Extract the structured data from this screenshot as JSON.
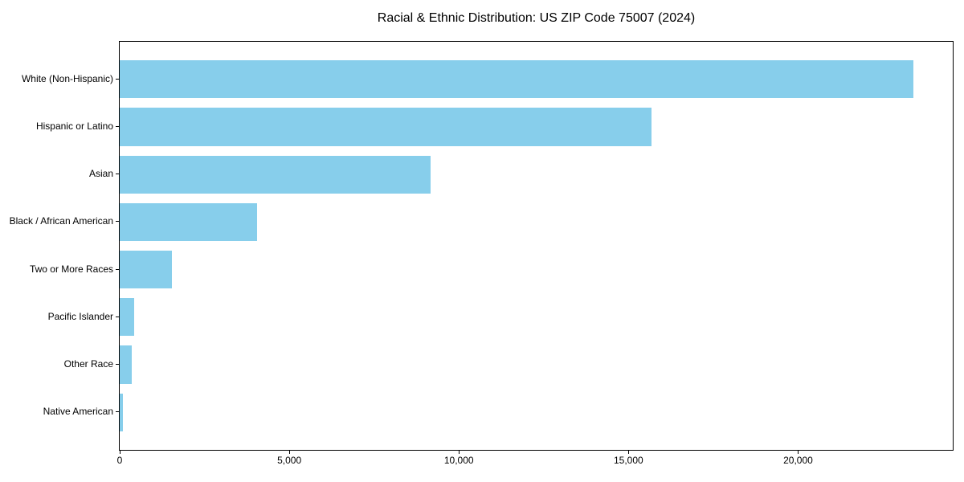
{
  "chart_data": {
    "type": "bar",
    "orientation": "horizontal",
    "title": "Racial & Ethnic Distribution: US ZIP Code 75007 (2024)",
    "categories": [
      "White (Non-Hispanic)",
      "Hispanic or Latino",
      "Asian",
      "Black / African American",
      "Two or More Races",
      "Pacific Islander",
      "Other Race",
      "Native American"
    ],
    "values": [
      23390,
      15680,
      9170,
      4060,
      1540,
      430,
      360,
      100
    ],
    "xlabel": "",
    "ylabel": "",
    "xlim": [
      0,
      24560
    ],
    "xticks": [
      0,
      5000,
      10000,
      15000,
      20000
    ],
    "xtick_labels": [
      "0",
      "5,000",
      "10,000",
      "15,000",
      "20,000"
    ],
    "bar_color": "#87CEEB",
    "axis_color": "#000000",
    "background_color": "#ffffff",
    "grid": false,
    "legend": null
  }
}
